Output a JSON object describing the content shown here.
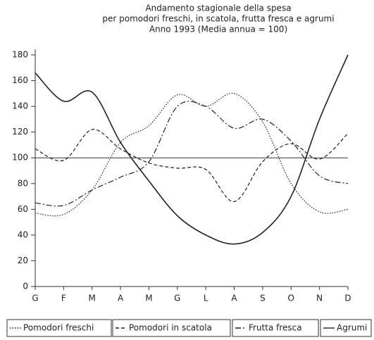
{
  "chart_data": {
    "type": "line",
    "title": [
      "Andamento stagionale della spesa",
      "per pomodori freschi, in scatola, frutta fresca e agrumi",
      "Anno 1993 (Media annua = 100)"
    ],
    "categories": [
      "G",
      "F",
      "M",
      "A",
      "M",
      "G",
      "L",
      "A",
      "S",
      "O",
      "N",
      "D"
    ],
    "series": [
      {
        "name": "Pomodori freschi",
        "color": "#222",
        "dash": "dotted",
        "values": [
          57,
          56,
          75,
          112,
          125,
          149,
          140,
          150,
          128,
          80,
          58,
          60
        ]
      },
      {
        "name": "Pomodori in scatola",
        "color": "#222",
        "dash": "dashed",
        "values": [
          107,
          98,
          122,
          107,
          96,
          92,
          91,
          66,
          97,
          111,
          99,
          119
        ]
      },
      {
        "name": "Frutta fresca",
        "color": "#222",
        "dash": "dashdot",
        "values": [
          65,
          63,
          75,
          85,
          97,
          140,
          140,
          123,
          130,
          113,
          86,
          80
        ]
      },
      {
        "name": "Agrumi",
        "color": "#222",
        "dash": "solid",
        "values": [
          166,
          144,
          151,
          112,
          82,
          55,
          40,
          33,
          42,
          70,
          130,
          180
        ]
      }
    ],
    "reference": 100,
    "ylim": [
      0,
      180
    ],
    "yticks": [
      0,
      20,
      40,
      60,
      80,
      100,
      120,
      140,
      160,
      180
    ],
    "legend": "bottom"
  }
}
